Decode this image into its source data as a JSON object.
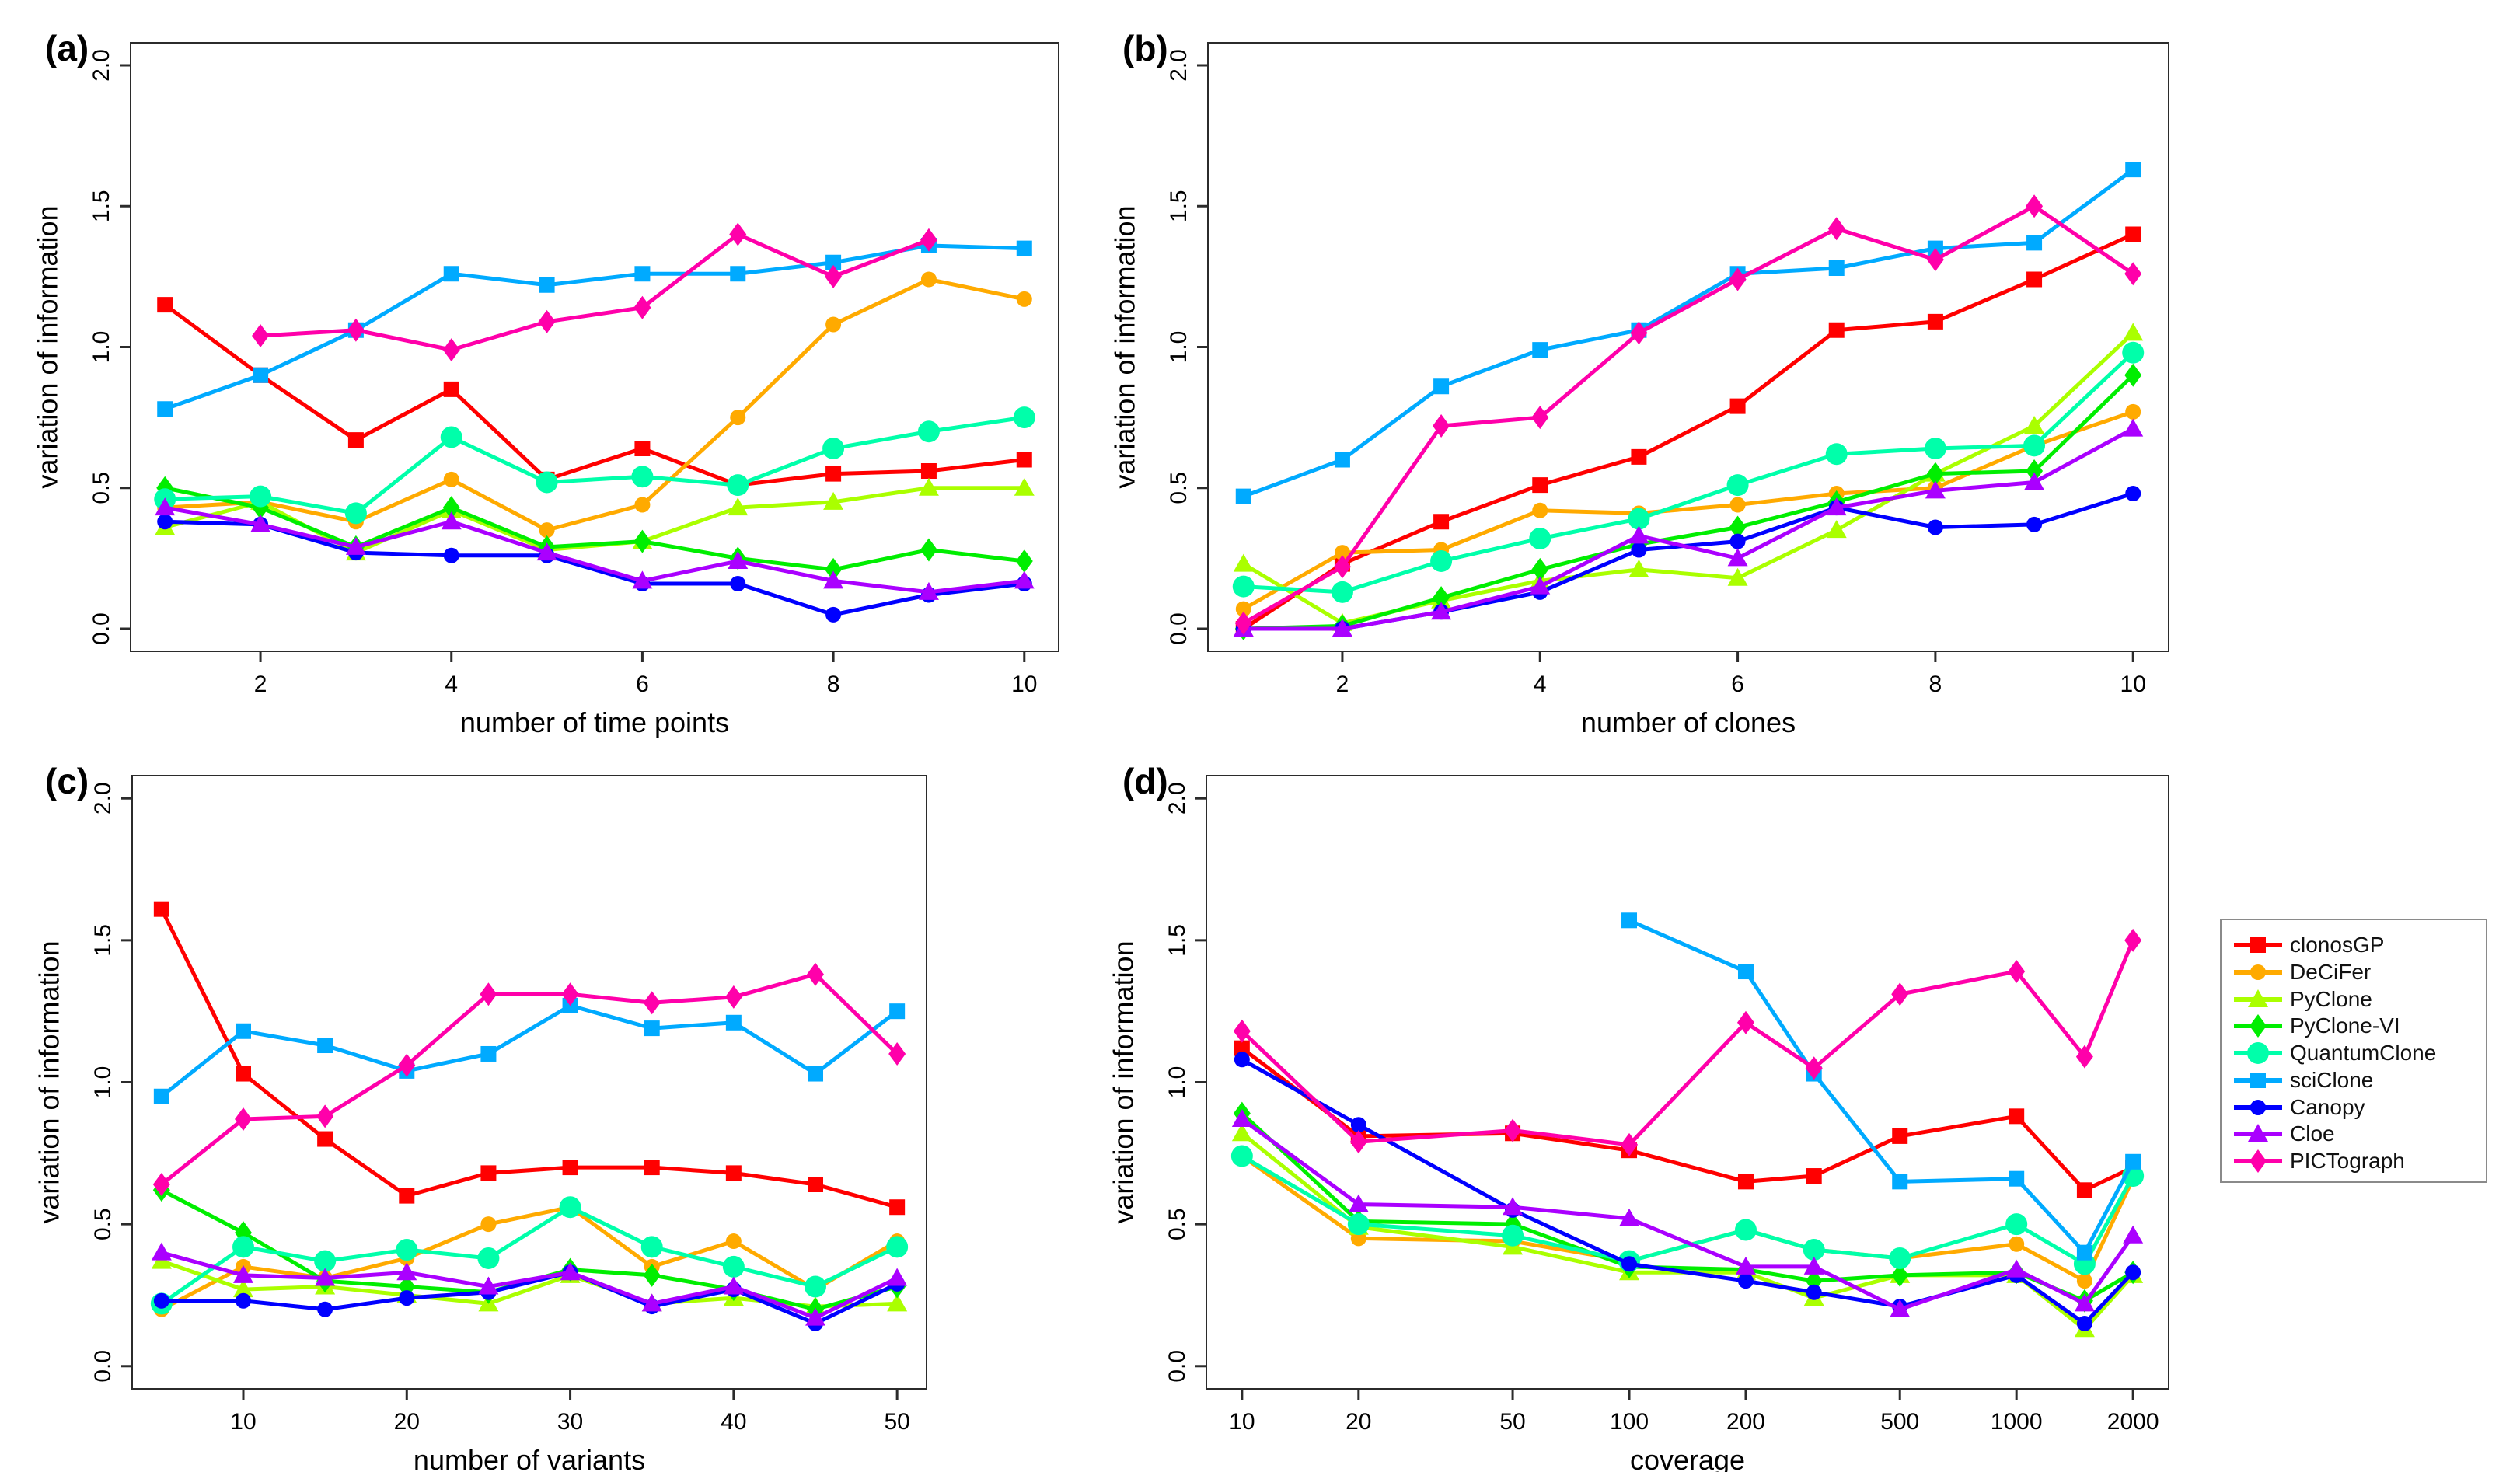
{
  "figure": {
    "ylabel": "variation of information",
    "y_ticks": [
      "0.0",
      "0.5",
      "1.0",
      "1.5",
      "2.0"
    ],
    "panel_letters": [
      "(a)",
      "(b)",
      "(c)",
      "(d)"
    ]
  },
  "series_defs": [
    {
      "name": "clonosGP",
      "color": "#FF0000",
      "marker": "square"
    },
    {
      "name": "DeCiFer",
      "color": "#FFAA00",
      "marker": "circle"
    },
    {
      "name": "PyClone",
      "color": "#AAFF00",
      "marker": "triangle"
    },
    {
      "name": "PyClone-VI",
      "color": "#00EE00",
      "marker": "diamond"
    },
    {
      "name": "QuantumClone",
      "color": "#00FFAA",
      "marker": "big-circle"
    },
    {
      "name": "sciClone",
      "color": "#00AAFF",
      "marker": "square"
    },
    {
      "name": "Canopy",
      "color": "#0000FF",
      "marker": "circle"
    },
    {
      "name": "Cloe",
      "color": "#AA00FF",
      "marker": "triangle"
    },
    {
      "name": "PICTograph",
      "color": "#FF00AA",
      "marker": "diamond"
    }
  ],
  "chart_data": [
    {
      "type": "line",
      "panel": "(a)",
      "xlabel": "number of time points",
      "ylabel": "variation of information",
      "x_scale": "linear",
      "ylim": [
        0,
        2
      ],
      "x": [
        1,
        2,
        3,
        4,
        5,
        6,
        7,
        8,
        9,
        10
      ],
      "x_ticks": [
        2,
        4,
        6,
        8,
        10
      ],
      "series": [
        {
          "name": "clonosGP",
          "values": [
            1.15,
            0.9,
            0.67,
            0.85,
            0.53,
            0.64,
            0.51,
            0.55,
            0.56,
            0.6
          ]
        },
        {
          "name": "DeCiFer",
          "values": [
            0.43,
            0.45,
            0.38,
            0.53,
            0.35,
            0.44,
            0.75,
            1.08,
            1.24,
            1.17
          ]
        },
        {
          "name": "PyClone",
          "values": [
            0.36,
            0.45,
            0.27,
            0.42,
            0.28,
            0.31,
            0.43,
            0.45,
            0.5,
            0.5
          ]
        },
        {
          "name": "PyClone-VI",
          "values": [
            0.5,
            0.43,
            0.29,
            0.43,
            0.29,
            0.31,
            0.25,
            0.21,
            0.28,
            0.24
          ]
        },
        {
          "name": "QuantumClone",
          "values": [
            0.46,
            0.47,
            0.41,
            0.68,
            0.52,
            0.54,
            0.51,
            0.64,
            0.7,
            0.75
          ]
        },
        {
          "name": "sciClone",
          "values": [
            0.78,
            0.9,
            1.06,
            1.26,
            1.22,
            1.26,
            1.26,
            1.3,
            1.36,
            1.35
          ]
        },
        {
          "name": "Canopy",
          "values": [
            0.38,
            0.37,
            0.27,
            0.26,
            0.26,
            0.16,
            0.16,
            0.05,
            0.12,
            0.16
          ]
        },
        {
          "name": "Cloe",
          "values": [
            0.43,
            0.37,
            0.29,
            0.38,
            0.27,
            0.17,
            0.24,
            0.17,
            0.13,
            0.17
          ]
        },
        {
          "name": "PICTograph",
          "values": [
            null,
            1.04,
            1.06,
            0.99,
            1.09,
            1.14,
            1.4,
            1.25,
            1.38,
            null
          ]
        }
      ]
    },
    {
      "type": "line",
      "panel": "(b)",
      "xlabel": "number of clones",
      "ylabel": "variation of information",
      "x_scale": "linear",
      "ylim": [
        0,
        2
      ],
      "x": [
        1,
        2,
        3,
        4,
        5,
        6,
        7,
        8,
        9,
        10
      ],
      "x_ticks": [
        2,
        4,
        6,
        8,
        10
      ],
      "series": [
        {
          "name": "clonosGP",
          "values": [
            0.0,
            0.23,
            0.38,
            0.51,
            0.61,
            0.79,
            1.06,
            1.09,
            1.24,
            1.4
          ]
        },
        {
          "name": "DeCiFer",
          "values": [
            0.07,
            0.27,
            0.28,
            0.42,
            0.41,
            0.44,
            0.48,
            0.5,
            0.65,
            0.77
          ]
        },
        {
          "name": "PyClone",
          "values": [
            0.23,
            0.02,
            0.1,
            0.17,
            0.21,
            0.18,
            0.35,
            0.55,
            0.72,
            1.05
          ]
        },
        {
          "name": "PyClone-VI",
          "values": [
            0.0,
            0.01,
            0.11,
            0.21,
            0.3,
            0.36,
            0.45,
            0.55,
            0.56,
            0.9
          ]
        },
        {
          "name": "QuantumClone",
          "values": [
            0.15,
            0.13,
            0.24,
            0.32,
            0.39,
            0.51,
            0.62,
            0.64,
            0.65,
            0.98
          ]
        },
        {
          "name": "sciClone",
          "values": [
            0.47,
            0.6,
            0.86,
            0.99,
            1.06,
            1.26,
            1.28,
            1.35,
            1.37,
            1.63
          ]
        },
        {
          "name": "Canopy",
          "values": [
            0.0,
            0.0,
            0.06,
            0.13,
            0.28,
            0.31,
            0.43,
            0.36,
            0.37,
            0.48
          ]
        },
        {
          "name": "Cloe",
          "values": [
            0.0,
            0.0,
            0.06,
            0.15,
            0.33,
            0.25,
            0.43,
            0.49,
            0.52,
            0.71
          ]
        },
        {
          "name": "PICTograph",
          "values": [
            0.02,
            0.22,
            0.72,
            0.75,
            1.05,
            1.24,
            1.42,
            1.31,
            1.5,
            1.26
          ]
        }
      ]
    },
    {
      "type": "line",
      "panel": "(c)",
      "xlabel": "number of variants",
      "ylabel": "variation of information",
      "x_scale": "linear",
      "ylim": [
        0,
        2
      ],
      "x": [
        5,
        10,
        15,
        20,
        25,
        30,
        35,
        40,
        45,
        50
      ],
      "x_ticks": [
        10,
        20,
        30,
        40,
        50
      ],
      "series": [
        {
          "name": "clonosGP",
          "values": [
            1.61,
            1.03,
            0.8,
            0.6,
            0.68,
            0.7,
            0.7,
            0.68,
            0.64,
            0.56
          ]
        },
        {
          "name": "DeCiFer",
          "values": [
            0.2,
            0.35,
            0.31,
            0.38,
            0.5,
            0.56,
            0.35,
            0.44,
            0.27,
            0.44
          ]
        },
        {
          "name": "PyClone",
          "values": [
            0.37,
            0.27,
            0.28,
            0.25,
            0.22,
            0.32,
            0.22,
            0.24,
            0.21,
            0.22
          ]
        },
        {
          "name": "PyClone-VI",
          "values": [
            0.62,
            0.47,
            0.3,
            0.28,
            0.26,
            0.34,
            0.32,
            0.27,
            0.2,
            0.28
          ]
        },
        {
          "name": "QuantumClone",
          "values": [
            0.22,
            0.42,
            0.37,
            0.41,
            0.38,
            0.56,
            0.42,
            0.35,
            0.28,
            0.42
          ]
        },
        {
          "name": "sciClone",
          "values": [
            0.95,
            1.18,
            1.13,
            1.04,
            1.1,
            1.27,
            1.19,
            1.21,
            1.03,
            1.25
          ]
        },
        {
          "name": "Canopy",
          "values": [
            0.23,
            0.23,
            0.2,
            0.24,
            0.26,
            0.33,
            0.21,
            0.27,
            0.15,
            0.29
          ]
        },
        {
          "name": "Cloe",
          "values": [
            0.4,
            0.32,
            0.31,
            0.33,
            0.28,
            0.33,
            0.22,
            0.28,
            0.17,
            0.31
          ]
        },
        {
          "name": "PICTograph",
          "values": [
            0.64,
            0.87,
            0.88,
            1.06,
            1.31,
            1.31,
            1.28,
            1.3,
            1.38,
            1.1
          ]
        }
      ]
    },
    {
      "type": "line",
      "panel": "(d)",
      "xlabel": "coverage",
      "ylabel": "variation of information",
      "x_scale": "log",
      "ylim": [
        0,
        2
      ],
      "x": [
        10,
        20,
        50,
        100,
        200,
        300,
        500,
        1000,
        1500,
        2000
      ],
      "x_ticks": [
        10,
        20,
        50,
        100,
        200,
        500,
        1000,
        2000
      ],
      "series": [
        {
          "name": "clonosGP",
          "values": [
            1.12,
            0.81,
            0.82,
            0.76,
            0.65,
            0.67,
            0.81,
            0.88,
            0.62,
            0.7
          ]
        },
        {
          "name": "DeCiFer",
          "values": [
            0.74,
            0.45,
            0.44,
            0.37,
            0.48,
            0.41,
            0.38,
            0.43,
            0.3,
            0.66
          ]
        },
        {
          "name": "PyClone",
          "values": [
            0.82,
            0.49,
            0.42,
            0.33,
            0.33,
            0.24,
            0.32,
            0.32,
            0.13,
            0.32
          ]
        },
        {
          "name": "PyClone-VI",
          "values": [
            0.89,
            0.51,
            0.5,
            0.35,
            0.34,
            0.3,
            0.32,
            0.33,
            0.23,
            0.33
          ]
        },
        {
          "name": "QuantumClone",
          "values": [
            0.74,
            0.5,
            0.46,
            0.37,
            0.48,
            0.41,
            0.38,
            0.5,
            0.36,
            0.67
          ]
        },
        {
          "name": "sciClone",
          "values": [
            null,
            null,
            null,
            1.57,
            1.39,
            1.03,
            0.65,
            0.66,
            0.4,
            0.72
          ]
        },
        {
          "name": "Canopy",
          "values": [
            1.08,
            0.85,
            0.55,
            0.36,
            0.3,
            0.26,
            0.21,
            0.32,
            0.15,
            0.33
          ]
        },
        {
          "name": "Cloe",
          "values": [
            0.87,
            0.57,
            0.56,
            0.52,
            0.35,
            0.35,
            0.2,
            0.34,
            0.22,
            0.46
          ]
        },
        {
          "name": "PICTograph",
          "values": [
            1.18,
            0.79,
            0.83,
            0.78,
            1.21,
            1.05,
            1.31,
            1.39,
            1.09,
            1.5
          ]
        }
      ]
    }
  ]
}
